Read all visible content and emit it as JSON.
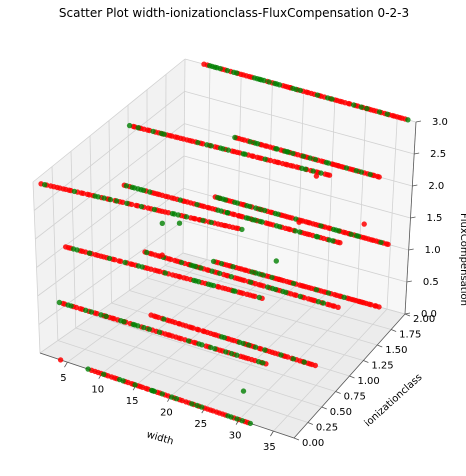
{
  "chart_data": {
    "type": "scatter",
    "projection": "3d",
    "title": "Scatter Plot  width-ionizationclass-FluxCompensation  0-2-3",
    "xlabel": "width",
    "ylabel": "ionizationclass",
    "zlabel": "FluxCompensation",
    "x_ticks": [
      5,
      10,
      15,
      20,
      25,
      30,
      35
    ],
    "y_ticks": [
      "0.00",
      "0.25",
      "0.50",
      "0.75",
      "1.00",
      "1.25",
      "1.50",
      "1.75",
      "2.00"
    ],
    "z_ticks": [
      "0.0",
      "0.5",
      "1.0",
      "1.5",
      "2.0",
      "2.5",
      "3.0"
    ],
    "xlim": [
      1,
      38
    ],
    "ylim": [
      0,
      2
    ],
    "zlim": [
      0,
      3
    ],
    "grid": true,
    "colors": {
      "class_a": "#ff0000",
      "class_b": "#008000"
    },
    "series": [
      {
        "color": "#ff0000",
        "opacity": 0.85,
        "points": []
      },
      {
        "color": "#008000",
        "opacity": 0.8,
        "points": []
      }
    ],
    "lines": [
      {
        "y": 0,
        "z": 0,
        "x_range": [
          8,
          32
        ]
      },
      {
        "y": 0,
        "z": 1,
        "x_range": [
          4,
          34
        ]
      },
      {
        "y": 0,
        "z": 2,
        "x_range": [
          5,
          33
        ]
      },
      {
        "y": 0,
        "z": 3,
        "x_range": [
          2,
          30
        ]
      },
      {
        "y": 1,
        "z": 0,
        "x_range": [
          7,
          33
        ]
      },
      {
        "y": 1,
        "z": 1,
        "x_range": [
          6,
          36
        ]
      },
      {
        "y": 1,
        "z": 2,
        "x_range": [
          3,
          36
        ]
      },
      {
        "y": 1,
        "z": 3,
        "x_range": [
          4,
          34
        ]
      },
      {
        "y": 2,
        "z": 0,
        "x_range": [
          6,
          34
        ]
      },
      {
        "y": 2,
        "z": 1,
        "x_range": [
          6,
          35
        ]
      },
      {
        "y": 2,
        "z": 2,
        "x_range": [
          9,
          33
        ]
      },
      {
        "y": 2,
        "z": 3,
        "x_range": [
          4,
          37
        ]
      }
    ]
  }
}
